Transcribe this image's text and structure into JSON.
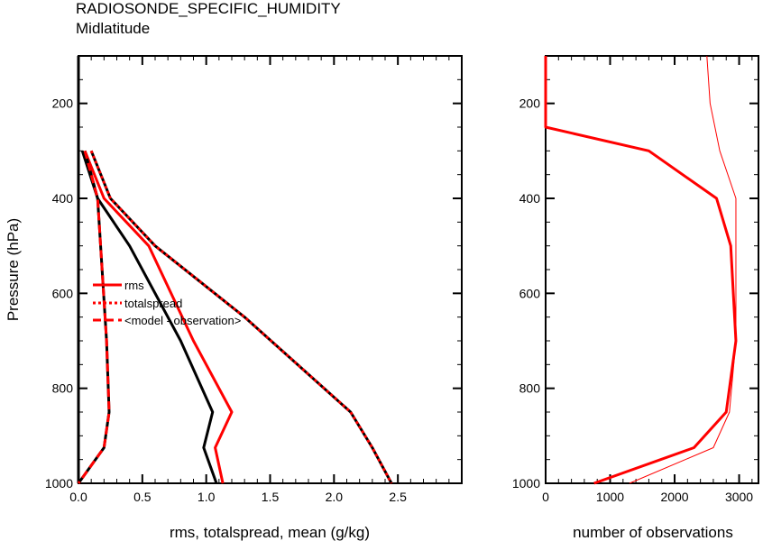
{
  "figure": {
    "title": "RADIOSONDE_SPECIFIC_HUMIDITY",
    "subtitle": "Midlatitude"
  },
  "chart_data": [
    {
      "type": "line",
      "xlabel": "rms, totalspread, mean (g/kg)",
      "ylabel": "Pressure (hPa)",
      "xlim": [
        0,
        3
      ],
      "ylim": [
        1000,
        100
      ],
      "y_axis_reversed": true,
      "xticks": [
        "0.0",
        "0.5",
        "1.0",
        "1.5",
        "2.0",
        "2.5"
      ],
      "yticks": [
        "200",
        "400",
        "600",
        "800",
        "1000"
      ],
      "legend": {
        "placement": "middle-left",
        "entries": [
          {
            "label": "rms",
            "style": "solid"
          },
          {
            "label": "totalspread",
            "style": "dotted"
          },
          {
            "label": "<model - observation>",
            "style": "dashed"
          }
        ]
      },
      "series": [
        {
          "name": "rms",
          "color": "#ff0000",
          "style": "solid",
          "width": 3,
          "points": [
            [
              0.05,
              300
            ],
            [
              0.2,
              400
            ],
            [
              0.55,
              500
            ],
            [
              0.9,
              700
            ],
            [
              1.2,
              850
            ],
            [
              1.07,
              925
            ],
            [
              1.13,
              1000
            ]
          ]
        },
        {
          "color": "#000000",
          "style": "solid",
          "width": 3,
          "points": [
            [
              0.03,
              300
            ],
            [
              0.15,
              400
            ],
            [
              0.4,
              500
            ],
            [
              0.8,
              700
            ],
            [
              1.05,
              850
            ],
            [
              0.98,
              925
            ],
            [
              1.08,
              1000
            ]
          ]
        },
        {
          "name": "totalspread",
          "color": "#ff0000",
          "style": "dotted-overlay",
          "width": 3,
          "points": [
            [
              0.1,
              300
            ],
            [
              0.25,
              400
            ],
            [
              0.6,
              500
            ],
            [
              1.3,
              650
            ],
            [
              2.13,
              850
            ],
            [
              2.3,
              925
            ],
            [
              2.45,
              1000
            ]
          ]
        },
        {
          "name": "<model - observation>",
          "color": "#ff0000",
          "style": "dashed-overlay",
          "width": 3,
          "points": [
            [
              0.05,
              300
            ],
            [
              0.15,
              400
            ],
            [
              0.22,
              700
            ],
            [
              0.24,
              850
            ],
            [
              0.2,
              925
            ],
            [
              0.0,
              1000
            ]
          ]
        }
      ]
    },
    {
      "type": "line",
      "xlabel": "number of observations",
      "ylabel": "",
      "xlim": [
        0,
        3300
      ],
      "ylim": [
        1000,
        100
      ],
      "y_axis_reversed": true,
      "xticks": [
        "0",
        "1000",
        "2000",
        "3000"
      ],
      "yticks": [
        "200",
        "400",
        "600",
        "800",
        "1000"
      ],
      "series": [
        {
          "color": "#ff0000",
          "width": 3,
          "points": [
            [
              0,
              100
            ],
            [
              0,
              250
            ],
            [
              1600,
              300
            ],
            [
              2650,
              400
            ],
            [
              2870,
              500
            ],
            [
              2950,
              700
            ],
            [
              2800,
              850
            ],
            [
              2300,
              925
            ],
            [
              750,
              1000
            ]
          ]
        },
        {
          "color": "#ff0000",
          "width": 1,
          "points": [
            [
              2500,
              100
            ],
            [
              2550,
              200
            ],
            [
              2700,
              300
            ],
            [
              2950,
              400
            ],
            [
              2950,
              700
            ],
            [
              2850,
              850
            ],
            [
              2600,
              925
            ],
            [
              1300,
              1000
            ]
          ]
        }
      ]
    }
  ]
}
